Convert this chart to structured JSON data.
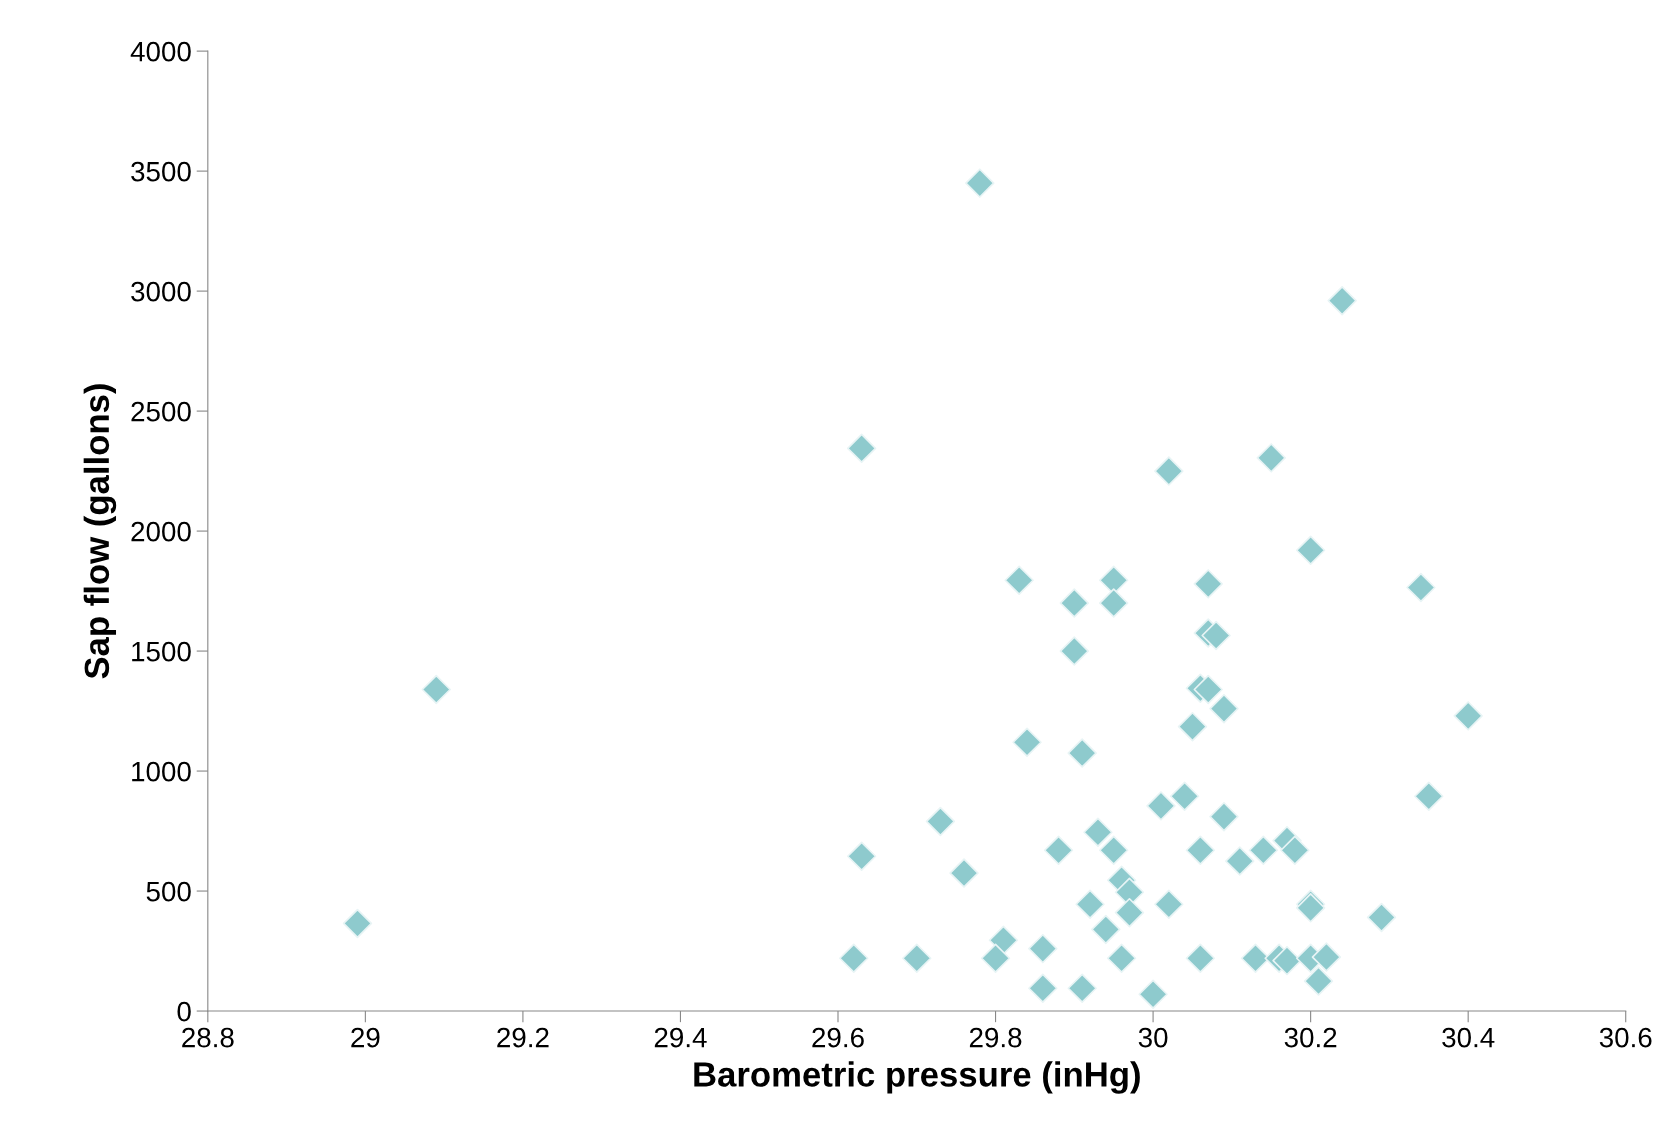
{
  "chart_data": {
    "type": "scatter",
    "xlabel": "Barometric pressure (inHg)",
    "ylabel": "Sap flow (gallons)",
    "x": [
      28.99,
      29.09,
      29.78,
      30.24,
      29.63,
      30.02,
      30.15,
      30.2,
      30.34,
      29.83,
      29.95,
      30.07,
      29.9,
      29.95,
      29.9,
      30.07,
      30.08,
      30.06,
      30.07,
      30.09,
      30.05,
      30.4,
      29.84,
      29.91,
      30.04,
      30.01,
      30.35,
      30.09,
      29.73,
      29.93,
      29.88,
      29.95,
      30.06,
      30.11,
      30.14,
      30.17,
      30.18,
      29.63,
      29.76,
      29.96,
      29.97,
      29.97,
      29.92,
      30.02,
      30.2,
      30.2,
      29.94,
      30.29,
      29.81,
      29.86,
      29.62,
      29.7,
      29.8,
      29.96,
      30.06,
      30.13,
      30.16,
      30.17,
      30.2,
      30.22,
      29.86,
      29.91,
      30.0,
      30.21
    ],
    "values": [
      365,
      1340,
      3450,
      2960,
      2345,
      2250,
      2305,
      1920,
      1765,
      1795,
      1795,
      1780,
      1700,
      1700,
      1500,
      1575,
      1565,
      1345,
      1340,
      1260,
      1185,
      1230,
      1120,
      1075,
      895,
      855,
      895,
      810,
      790,
      745,
      670,
      670,
      670,
      625,
      670,
      710,
      670,
      645,
      575,
      545,
      495,
      410,
      445,
      445,
      445,
      430,
      340,
      390,
      295,
      260,
      220,
      220,
      220,
      220,
      220,
      220,
      220,
      210,
      220,
      225,
      95,
      95,
      70,
      125
    ],
    "color": "#8ecacd",
    "marker": "diamond",
    "grid": false,
    "xlim": [
      28.8,
      30.6
    ],
    "xticks": [
      28.8,
      29,
      29.2,
      29.4,
      29.6,
      29.8,
      30,
      30.2,
      30.4,
      30.6
    ],
    "ylim": [
      0,
      4000
    ],
    "yticks": [
      0,
      500,
      1000,
      1500,
      2000,
      2500,
      3000,
      3500,
      4000
    ]
  }
}
